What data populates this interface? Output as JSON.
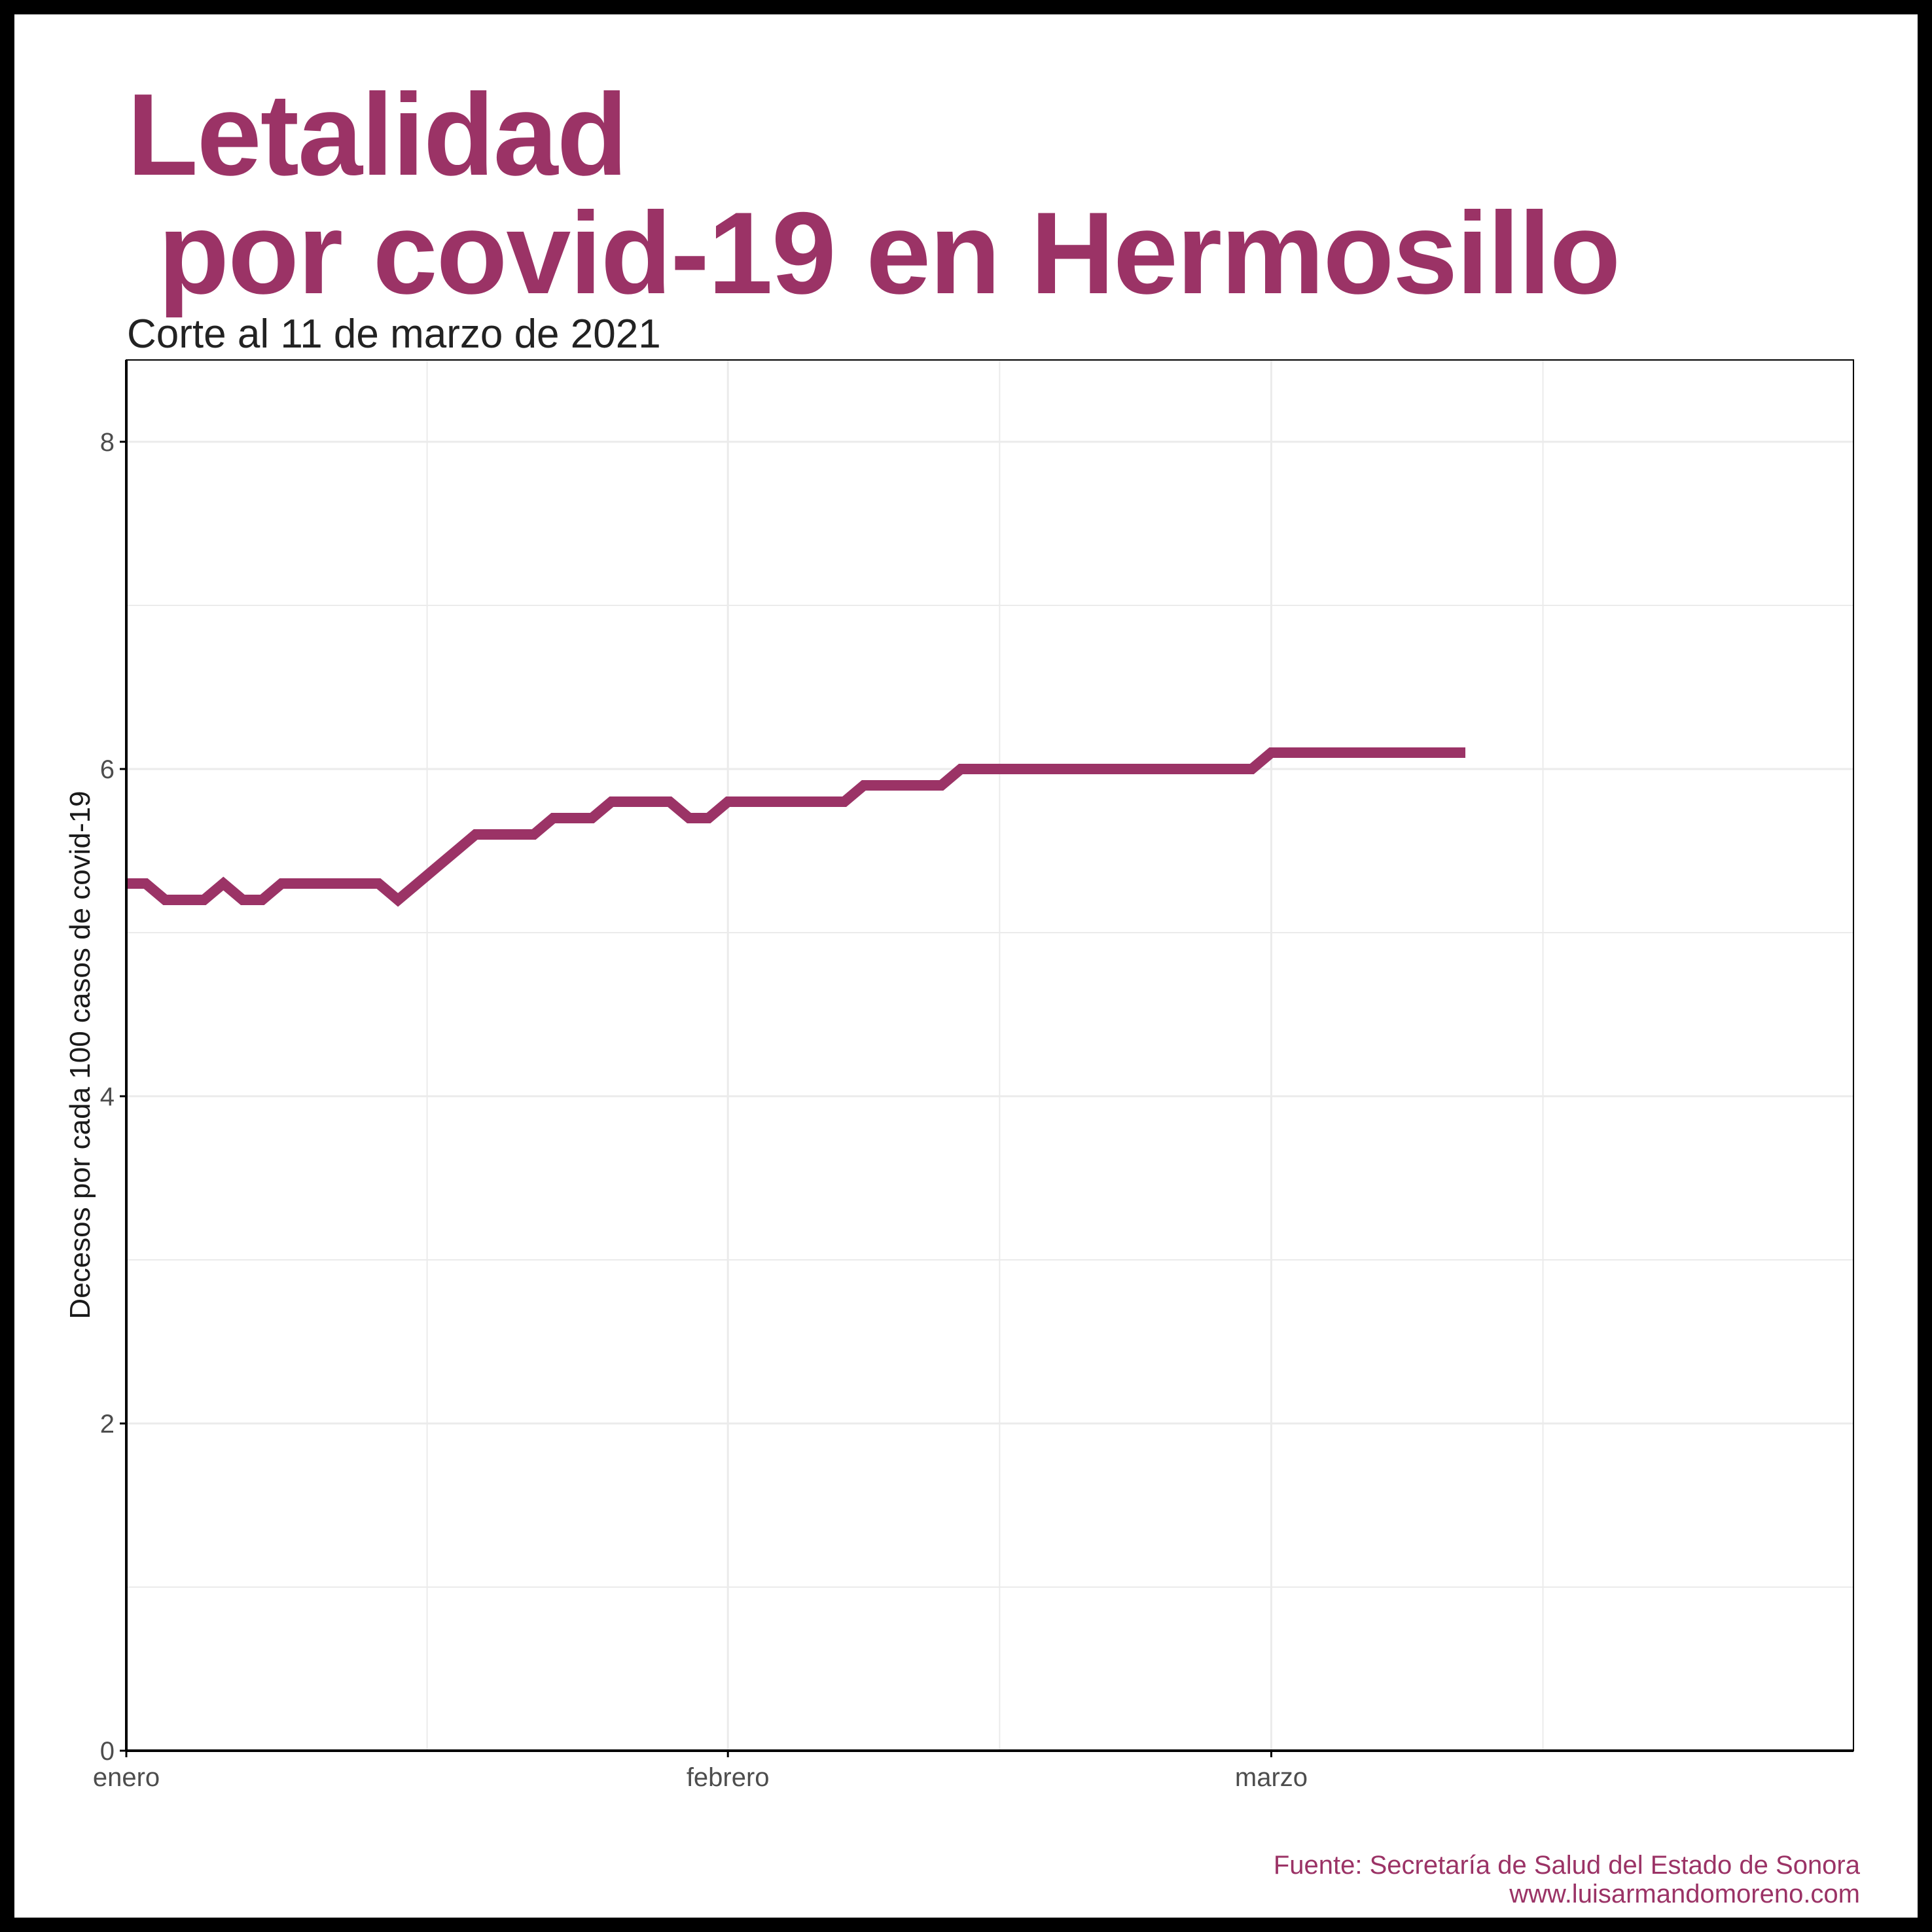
{
  "colors": {
    "accent": "#9b3366",
    "axis": "#000000",
    "grid": "#ebebeb",
    "tick_text": "#4d4d4d"
  },
  "header": {
    "title_line1": "Letalidad",
    "title_line2": " por covid-19 en Hermosillo",
    "subtitle": "Corte al 11 de marzo de 2021"
  },
  "footer": {
    "source": "Fuente: Secretaría de Salud del Estado de Sonora",
    "website": "www.luisarmandomoreno.com"
  },
  "chart_data": {
    "type": "line",
    "title": "Letalidad por covid-19 en Hermosillo",
    "subtitle": "Corte al 11 de marzo de 2021",
    "xlabel": "",
    "ylabel": "Decesos por cada 100 casos de covid-19",
    "xlim": [
      "2021-01-01",
      "2021-03-31"
    ],
    "ylim": [
      0,
      8.5
    ],
    "x_ticks": [
      {
        "date": "2021-01-01",
        "label": "enero"
      },
      {
        "date": "2021-02-01",
        "label": "febrero"
      },
      {
        "date": "2021-03-01",
        "label": "marzo"
      }
    ],
    "y_ticks": [
      0,
      2,
      4,
      6,
      8
    ],
    "grid": true,
    "legend": "none",
    "series": [
      {
        "color": "#9b3366",
        "points": [
          [
            "2021-01-01",
            5.3
          ],
          [
            "2021-01-02",
            5.3
          ],
          [
            "2021-01-03",
            5.2
          ],
          [
            "2021-01-04",
            5.2
          ],
          [
            "2021-01-05",
            5.2
          ],
          [
            "2021-01-06",
            5.3
          ],
          [
            "2021-01-07",
            5.2
          ],
          [
            "2021-01-08",
            5.2
          ],
          [
            "2021-01-09",
            5.3
          ],
          [
            "2021-01-10",
            5.3
          ],
          [
            "2021-01-11",
            5.3
          ],
          [
            "2021-01-12",
            5.3
          ],
          [
            "2021-01-13",
            5.3
          ],
          [
            "2021-01-14",
            5.3
          ],
          [
            "2021-01-15",
            5.2
          ],
          [
            "2021-01-16",
            5.3
          ],
          [
            "2021-01-17",
            5.4
          ],
          [
            "2021-01-18",
            5.5
          ],
          [
            "2021-01-19",
            5.6
          ],
          [
            "2021-01-20",
            5.6
          ],
          [
            "2021-01-21",
            5.6
          ],
          [
            "2021-01-22",
            5.6
          ],
          [
            "2021-01-23",
            5.7
          ],
          [
            "2021-01-24",
            5.7
          ],
          [
            "2021-01-25",
            5.7
          ],
          [
            "2021-01-26",
            5.8
          ],
          [
            "2021-01-27",
            5.8
          ],
          [
            "2021-01-28",
            5.8
          ],
          [
            "2021-01-29",
            5.8
          ],
          [
            "2021-01-30",
            5.7
          ],
          [
            "2021-01-31",
            5.7
          ],
          [
            "2021-02-01",
            5.8
          ],
          [
            "2021-02-02",
            5.8
          ],
          [
            "2021-02-03",
            5.8
          ],
          [
            "2021-02-04",
            5.8
          ],
          [
            "2021-02-05",
            5.8
          ],
          [
            "2021-02-06",
            5.8
          ],
          [
            "2021-02-07",
            5.8
          ],
          [
            "2021-02-08",
            5.9
          ],
          [
            "2021-02-09",
            5.9
          ],
          [
            "2021-02-10",
            5.9
          ],
          [
            "2021-02-11",
            5.9
          ],
          [
            "2021-02-12",
            5.9
          ],
          [
            "2021-02-13",
            6.0
          ],
          [
            "2021-02-14",
            6.0
          ],
          [
            "2021-02-15",
            6.0
          ],
          [
            "2021-02-16",
            6.0
          ],
          [
            "2021-02-17",
            6.0
          ],
          [
            "2021-02-18",
            6.0
          ],
          [
            "2021-02-19",
            6.0
          ],
          [
            "2021-02-20",
            6.0
          ],
          [
            "2021-02-21",
            6.0
          ],
          [
            "2021-02-22",
            6.0
          ],
          [
            "2021-02-23",
            6.0
          ],
          [
            "2021-02-24",
            6.0
          ],
          [
            "2021-02-25",
            6.0
          ],
          [
            "2021-02-26",
            6.0
          ],
          [
            "2021-02-27",
            6.0
          ],
          [
            "2021-02-28",
            6.0
          ],
          [
            "2021-03-01",
            6.1
          ],
          [
            "2021-03-02",
            6.1
          ],
          [
            "2021-03-03",
            6.1
          ],
          [
            "2021-03-04",
            6.1
          ],
          [
            "2021-03-05",
            6.1
          ],
          [
            "2021-03-06",
            6.1
          ],
          [
            "2021-03-07",
            6.1
          ],
          [
            "2021-03-08",
            6.1
          ],
          [
            "2021-03-09",
            6.1
          ],
          [
            "2021-03-10",
            6.1
          ],
          [
            "2021-03-11",
            6.1
          ]
        ]
      }
    ]
  }
}
